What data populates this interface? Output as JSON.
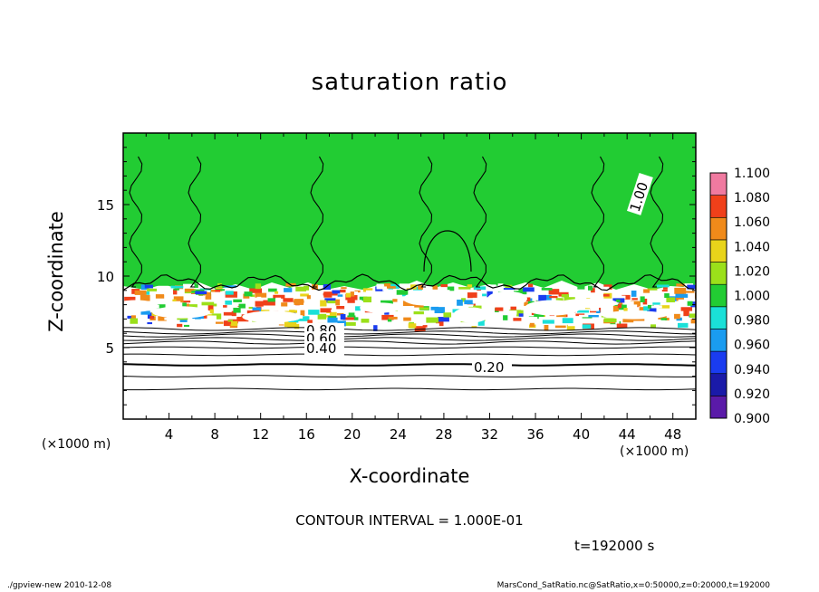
{
  "chart_data": {
    "type": "heatmap",
    "title": "saturation ratio",
    "xlabel": "X-coordinate",
    "ylabel": "Z-coordinate",
    "x_unit_label": "(×1000 m)",
    "x_unit_label_right": "(×1000 m)",
    "xlim": [
      0,
      50
    ],
    "ylim": [
      0,
      20
    ],
    "x_ticks": [
      "4",
      "8",
      "12",
      "16",
      "20",
      "24",
      "28",
      "32",
      "36",
      "40",
      "44",
      "48"
    ],
    "y_ticks": [
      "5",
      "10",
      "15"
    ],
    "colorbar": {
      "levels": [
        "0.900",
        "0.920",
        "0.940",
        "0.960",
        "0.980",
        "1.000",
        "1.020",
        "1.040",
        "1.060",
        "1.080",
        "1.100"
      ],
      "colors": [
        "#5a1aa8",
        "#1a1aa8",
        "#1a3cf0",
        "#1a9cf0",
        "#1ae0d8",
        "#22cc33",
        "#9be01a",
        "#e8d41a",
        "#f08a1a",
        "#f0401a",
        "#f07aa0"
      ]
    },
    "contour_labels": [
      "1.00",
      "0.80",
      "0.60",
      "0.40",
      "0.20"
    ],
    "contour_interval_text": "CONTOUR INTERVAL = 1.000E-01",
    "time_text": "t=192000 s",
    "footer_left": "./gpview-new   2010-12-08",
    "footer_right": "MarsCond_SatRatio.nc@SatRatio,x=0:50000,z=0:20000,t=192000",
    "regions": {
      "saturated_top_z": [
        6.5,
        20
      ],
      "mixed_layer_z": [
        6.5,
        9.5
      ],
      "subsaturated_z": [
        0,
        6.5
      ]
    }
  }
}
